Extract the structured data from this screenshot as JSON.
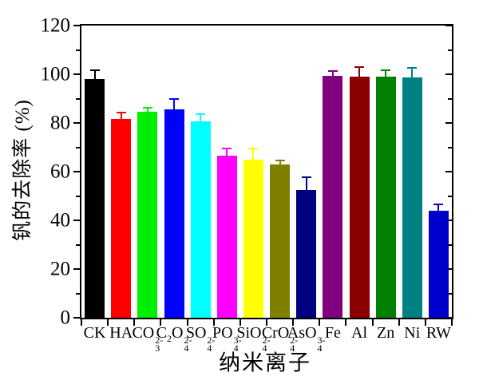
{
  "chart_data": {
    "type": "bar",
    "title": "",
    "xlabel": "纳米离子",
    "ylabel": "钒的去除率 (%)",
    "ylim": [
      0,
      120
    ],
    "ytick_step": 20,
    "yminor_step": 10,
    "ytick_labels": [
      "0",
      "20",
      "40",
      "60",
      "80",
      "100",
      "120"
    ],
    "grid": false,
    "legend": "none",
    "frame": "boxed",
    "error_bars": "upper, same color as bar",
    "bars": [
      {
        "name": "CK",
        "label_parts": [
          {
            "t": "CK"
          }
        ],
        "value": 98.0,
        "error": 3.5,
        "color": "#000000"
      },
      {
        "name": "HA",
        "label_parts": [
          {
            "t": "HA"
          }
        ],
        "value": 81.5,
        "error": 2.8,
        "color": "#ff0000"
      },
      {
        "name": "CO3 2-",
        "label_parts": [
          {
            "t": "CO"
          },
          {
            "sub": "3",
            "sup": "2-"
          }
        ],
        "value": 84.5,
        "error": 1.8,
        "color": "#00ee00"
      },
      {
        "name": "C2O4 2-",
        "label_parts": [
          {
            "t": "C"
          },
          {
            "sub": "2"
          },
          {
            "t": "O"
          },
          {
            "sub": "4",
            "sup": "2-"
          }
        ],
        "value": 85.5,
        "error": 4.2,
        "color": "#0000ff"
      },
      {
        "name": "SO4 2-",
        "label_parts": [
          {
            "t": "SO"
          },
          {
            "sub": "4",
            "sup": "2-"
          }
        ],
        "value": 80.5,
        "error": 3.0,
        "color": "#00ffff"
      },
      {
        "name": "PO4 3-",
        "label_parts": [
          {
            "t": "PO"
          },
          {
            "sub": "4",
            "sup": "3-"
          }
        ],
        "value": 66.5,
        "error": 3.0,
        "color": "#ff00ff"
      },
      {
        "name": "SiO4 2-",
        "label_parts": [
          {
            "t": "SiO"
          },
          {
            "sub": "4",
            "sup": "2-"
          }
        ],
        "value": 65.0,
        "error": 4.4,
        "color": "#ffff00"
      },
      {
        "name": "CrO4 2-",
        "label_parts": [
          {
            "t": "CrO"
          },
          {
            "sub": "4",
            "sup": "2-"
          }
        ],
        "value": 63.0,
        "error": 1.7,
        "color": "#808000"
      },
      {
        "name": "AsO4 3-",
        "label_parts": [
          {
            "t": "AsO"
          },
          {
            "sub": "4",
            "sup": "3-"
          }
        ],
        "value": 52.5,
        "error": 5.3,
        "color": "#000080"
      },
      {
        "name": "Fe",
        "label_parts": [
          {
            "t": "Fe"
          }
        ],
        "value": 99.5,
        "error": 1.8,
        "color": "#800080"
      },
      {
        "name": "Al",
        "label_parts": [
          {
            "t": "Al"
          }
        ],
        "value": 99.0,
        "error": 4.0,
        "color": "#8b0000"
      },
      {
        "name": "Zn",
        "label_parts": [
          {
            "t": "Zn"
          }
        ],
        "value": 99.0,
        "error": 2.6,
        "color": "#008000"
      },
      {
        "name": "Ni",
        "label_parts": [
          {
            "t": "Ni"
          }
        ],
        "value": 98.8,
        "error": 3.8,
        "color": "#008080"
      },
      {
        "name": "RW",
        "label_parts": [
          {
            "t": "RW"
          }
        ],
        "value": 44.0,
        "error": 2.6,
        "color": "#0000cd"
      }
    ]
  }
}
